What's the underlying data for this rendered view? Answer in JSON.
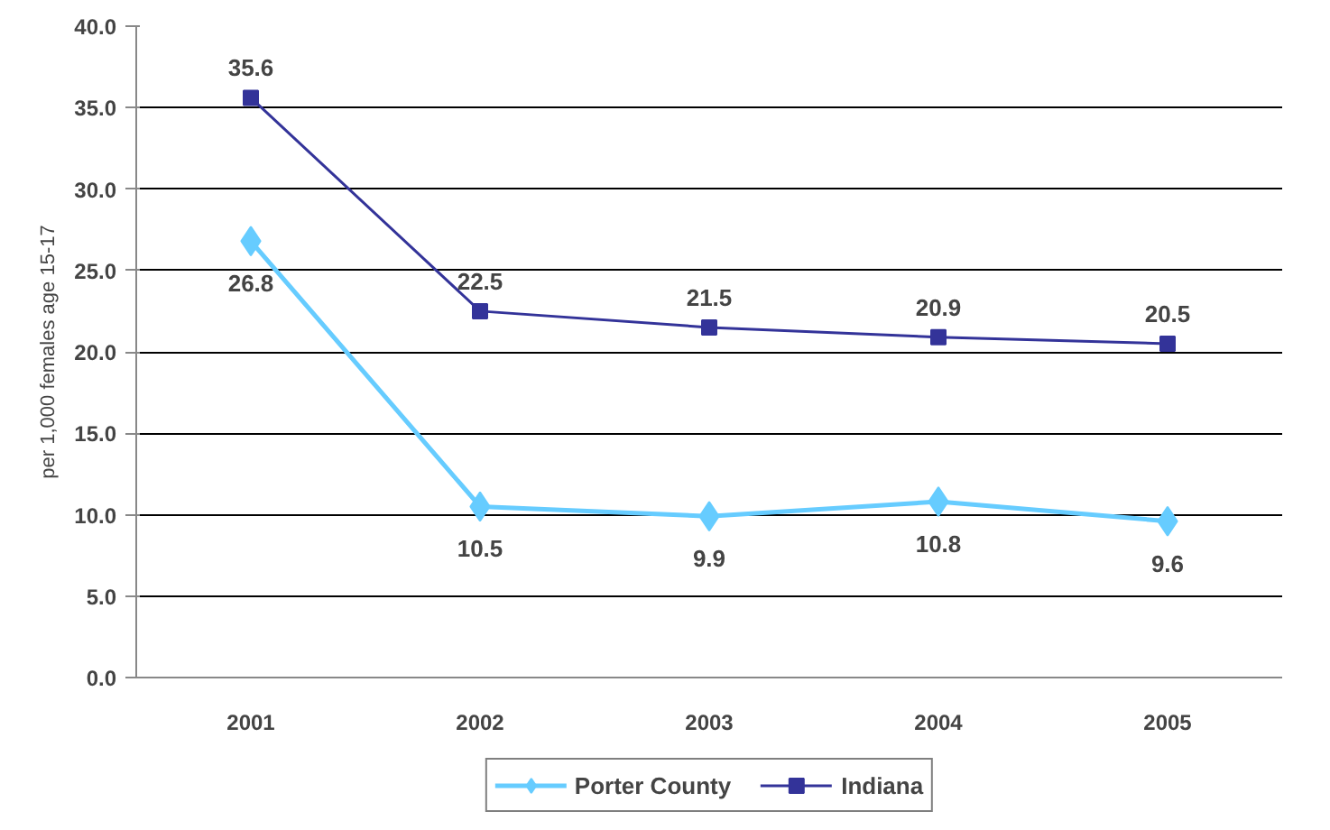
{
  "chart_data": {
    "type": "line",
    "categories": [
      "2001",
      "2002",
      "2003",
      "2004",
      "2005"
    ],
    "ylabel": "per 1,000 females age 15-17",
    "series": [
      {
        "name": "Porter County",
        "color": "#66ccff",
        "marker": "diamond",
        "values": [
          26.8,
          10.5,
          9.9,
          10.8,
          9.6
        ]
      },
      {
        "name": "Indiana",
        "color": "#333399",
        "marker": "square",
        "values": [
          35.6,
          22.5,
          21.5,
          20.9,
          20.5
        ]
      }
    ],
    "ylim": [
      0,
      40
    ],
    "yticks": [
      {
        "value": 0,
        "label": "0.0"
      },
      {
        "value": 5,
        "label": "5.0"
      },
      {
        "value": 10,
        "label": "10.0"
      },
      {
        "value": 15,
        "label": "15.0"
      },
      {
        "value": 20,
        "label": "20.0"
      },
      {
        "value": 25,
        "label": "25.0"
      },
      {
        "value": 30,
        "label": "30.0"
      },
      {
        "value": 35,
        "label": "35.0"
      },
      {
        "value": 40,
        "label": "40.0"
      }
    ],
    "grid": "y",
    "legend": "bottom",
    "data_labels": true,
    "line_style": "solid"
  }
}
